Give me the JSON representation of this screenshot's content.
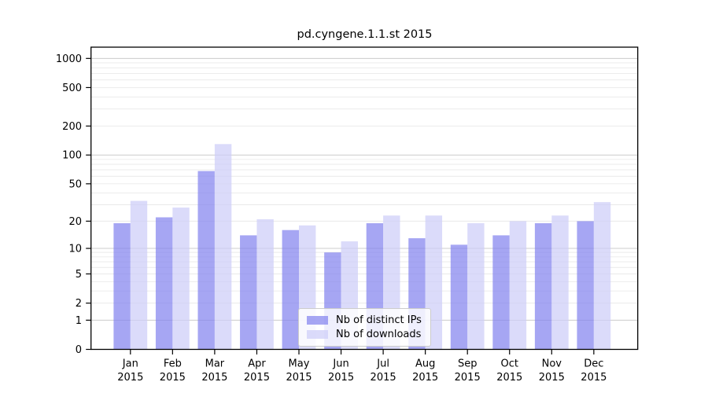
{
  "chart_data": {
    "type": "bar",
    "title": "pd.cyngene.1.1.st 2015",
    "categories": [
      "Jan",
      "Feb",
      "Mar",
      "Apr",
      "May",
      "Jun",
      "Jul",
      "Aug",
      "Sep",
      "Oct",
      "Nov",
      "Dec"
    ],
    "category_year": "2015",
    "series": [
      {
        "name": "Nb of distinct IPs",
        "color": "rgba(131,131,238,0.72)",
        "values": [
          19,
          22,
          68,
          14,
          16,
          9,
          19,
          13,
          11,
          14,
          19,
          20
        ]
      },
      {
        "name": "Nb of downloads",
        "color": "rgba(205,205,248,0.72)",
        "values": [
          33,
          28,
          130,
          21,
          18,
          12,
          23,
          23,
          19,
          20,
          23,
          32
        ]
      }
    ],
    "yscale": "log1p",
    "yticks": [
      0,
      1,
      2,
      5,
      10,
      20,
      50,
      100,
      200,
      500,
      1000
    ],
    "ylim": [
      0,
      1300
    ],
    "grid": true,
    "legend_position": "bottom-center",
    "colors": {
      "grid_major": "#cccccc",
      "grid_minor": "#e9e9e9",
      "axis": "#000000"
    }
  }
}
